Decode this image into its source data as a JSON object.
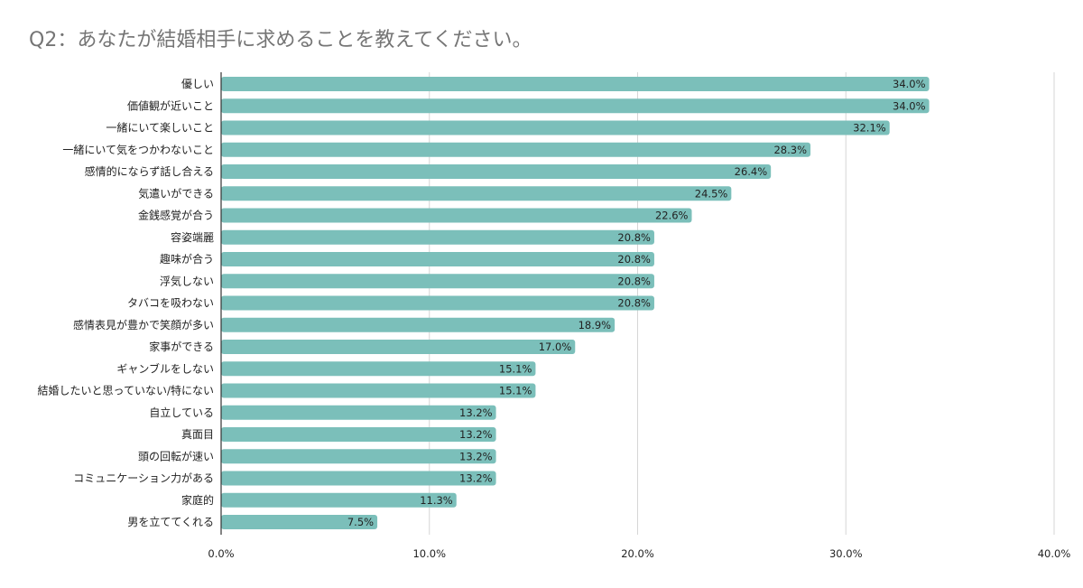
{
  "chart_data": {
    "type": "bar",
    "orientation": "horizontal",
    "title": "Q2：あなたが結婚相手に求めることを教えてください。",
    "categories": [
      "優しい",
      "価値観が近いこと",
      "一緒にいて楽しいこと",
      "一緒にいて気をつかわないこと",
      "感情的にならず話し合える",
      "気遣いができる",
      "金銭感覚が合う",
      "容姿端麗",
      "趣味が合う",
      "浮気しない",
      "タバコを吸わない",
      "感情表見が豊かで笑顔が多い",
      "家事ができる",
      "ギャンブルをしない",
      "結婚したいと思っていない/特にない",
      "自立している",
      "真面目",
      "頭の回転が速い",
      "コミュニケーション力がある",
      "家庭的",
      "男を立ててくれる"
    ],
    "values": [
      34.0,
      34.0,
      32.1,
      28.3,
      26.4,
      24.5,
      22.6,
      20.8,
      20.8,
      20.8,
      20.8,
      18.9,
      17.0,
      15.1,
      15.1,
      13.2,
      13.2,
      13.2,
      13.2,
      11.3,
      7.5
    ],
    "value_labels": [
      "34.0%",
      "34.0%",
      "32.1%",
      "28.3%",
      "26.4%",
      "24.5%",
      "22.6%",
      "20.8%",
      "20.8%",
      "20.8%",
      "20.8%",
      "18.9%",
      "17.0%",
      "15.1%",
      "15.1%",
      "13.2%",
      "13.2%",
      "13.2%",
      "13.2%",
      "11.3%",
      "7.5%"
    ],
    "xlim": [
      0,
      40
    ],
    "xticks": [
      0,
      10,
      20,
      30,
      40
    ],
    "xtick_labels": [
      "0.0%",
      "10.0%",
      "20.0%",
      "30.0%",
      "40.0%"
    ],
    "xlabel": "",
    "ylabel": "",
    "grid": "vertical",
    "legend": "none",
    "bar_color": "#7bbfba",
    "grid_color": "#d6d6d6",
    "axis_color": "#333333",
    "text_color": "#222222",
    "title_color": "#757575"
  }
}
